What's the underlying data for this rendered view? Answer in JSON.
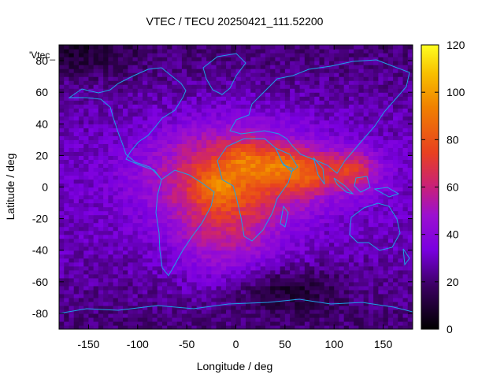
{
  "chart_data": {
    "type": "heatmap",
    "title": "VTEC / TECU 20250421_111.52200",
    "xlabel": "Longitude / deg",
    "ylabel": "Latitude / deg",
    "legend_label": "'Vtec_",
    "xlim": [
      -180,
      180
    ],
    "ylim": [
      -90,
      90
    ],
    "xticks": [
      -150,
      -100,
      -50,
      0,
      50,
      100,
      150
    ],
    "yticks": [
      -80,
      -60,
      -40,
      -20,
      0,
      20,
      40,
      60,
      80
    ],
    "colorbar": {
      "min": 0,
      "max": 120,
      "ticks": [
        0,
        20,
        40,
        60,
        80,
        100,
        120
      ],
      "palette": "black-purple-red-orange-yellow"
    },
    "grid": false,
    "cell_deg": [
      5,
      2.5
    ],
    "anomaly_peaks": [
      {
        "lon": -20,
        "lat": 0,
        "value": 105
      },
      {
        "lon": 10,
        "lat": 18,
        "value": 100
      },
      {
        "lon": 45,
        "lat": 15,
        "value": 95
      },
      {
        "lon": 75,
        "lat": 8,
        "value": 82
      },
      {
        "lon": 120,
        "lat": 10,
        "value": 70
      }
    ],
    "coastline_color": "#1ea0e6"
  }
}
